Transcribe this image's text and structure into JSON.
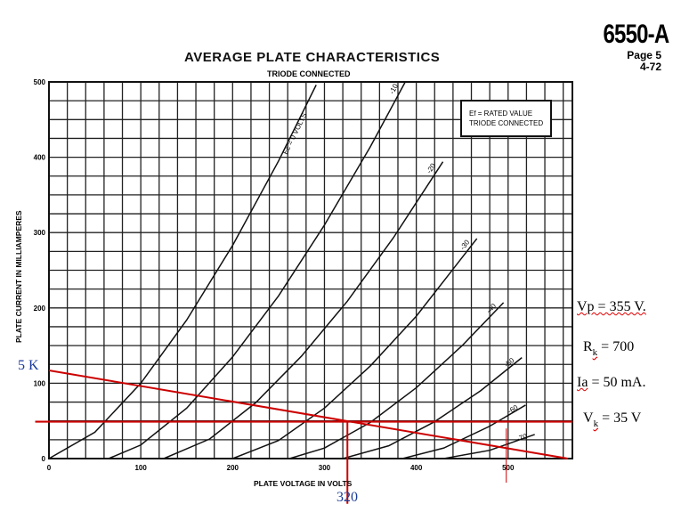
{
  "header": {
    "model": "6550-A",
    "page": "Page 5",
    "date": "4-72"
  },
  "chart_data": {
    "type": "line",
    "title": "AVERAGE PLATE CHARACTERISTICS",
    "subtitle": "TRIODE CONNECTED",
    "xlabel": "PLATE VOLTAGE IN VOLTS",
    "ylabel": "PLATE CURRENT IN MILLIAMPERES",
    "xlim": [
      0,
      570
    ],
    "ylim": [
      0,
      500
    ],
    "xticks": [
      0,
      100,
      200,
      300,
      400,
      500
    ],
    "yticks": [
      0,
      100,
      200,
      300,
      400,
      500
    ],
    "grid": {
      "x_step": 20,
      "y_step": 25
    },
    "legend_box": [
      "Ef = RATED VALUE",
      "TRIODE CONNECTED"
    ],
    "legend_placement": "top-right",
    "series": [
      {
        "name": "Ec = 0 VOLTS",
        "x": [
          0,
          50,
          100,
          150,
          200,
          250,
          291
        ],
        "y": [
          0,
          35,
          100,
          184,
          283,
          395,
          496
        ]
      },
      {
        "name": "-10",
        "x": [
          65,
          100,
          150,
          200,
          250,
          300,
          350,
          388
        ],
        "y": [
          0,
          18,
          67,
          135,
          216,
          310,
          414,
          500
        ]
      },
      {
        "name": "-20",
        "x": [
          125,
          175,
          225,
          275,
          325,
          375,
          429
        ],
        "y": [
          0,
          26,
          74,
          136,
          209,
          293,
          394
        ]
      },
      {
        "name": "-30",
        "x": [
          200,
          250,
          300,
          350,
          400,
          466
        ],
        "y": [
          0,
          24,
          67,
          123,
          189,
          292
        ]
      },
      {
        "name": "-40",
        "x": [
          262,
          300,
          350,
          400,
          450,
          495
        ],
        "y": [
          0,
          14,
          48,
          94,
          150,
          207
        ]
      },
      {
        "name": "-50",
        "x": [
          320,
          370,
          420,
          470,
          515
        ],
        "y": [
          0,
          17,
          49,
          90,
          134
        ]
      },
      {
        "name": "-60",
        "x": [
          385,
          430,
          480,
          519
        ],
        "y": [
          0,
          14,
          43,
          71
        ]
      },
      {
        "name": "-70",
        "x": [
          430,
          480,
          529
        ],
        "y": [
          0,
          11,
          32
        ]
      }
    ],
    "overlays": {
      "load_line": {
        "label": "5 K",
        "x": [
          0,
          565
        ],
        "y": [
          117,
          0
        ],
        "color": "#cc0000"
      },
      "bias_line": {
        "y": 49,
        "x": [
          -15,
          570
        ],
        "color": "#cc0000"
      },
      "operating_point": {
        "label": "320",
        "x": 325,
        "y": 49
      },
      "marker_line": {
        "x": 498,
        "y": [
          40,
          -32
        ]
      }
    }
  },
  "annotations": {
    "vp": "Vp = 355 V.",
    "rk_main": "R",
    "rk_sub": "k",
    "rk_value": " = 700",
    "ia_main": "Ia",
    "ia_value": " = 50 mA.",
    "vk_main": "V",
    "vk_sub": "k",
    "vk_value": " = 35 V"
  }
}
